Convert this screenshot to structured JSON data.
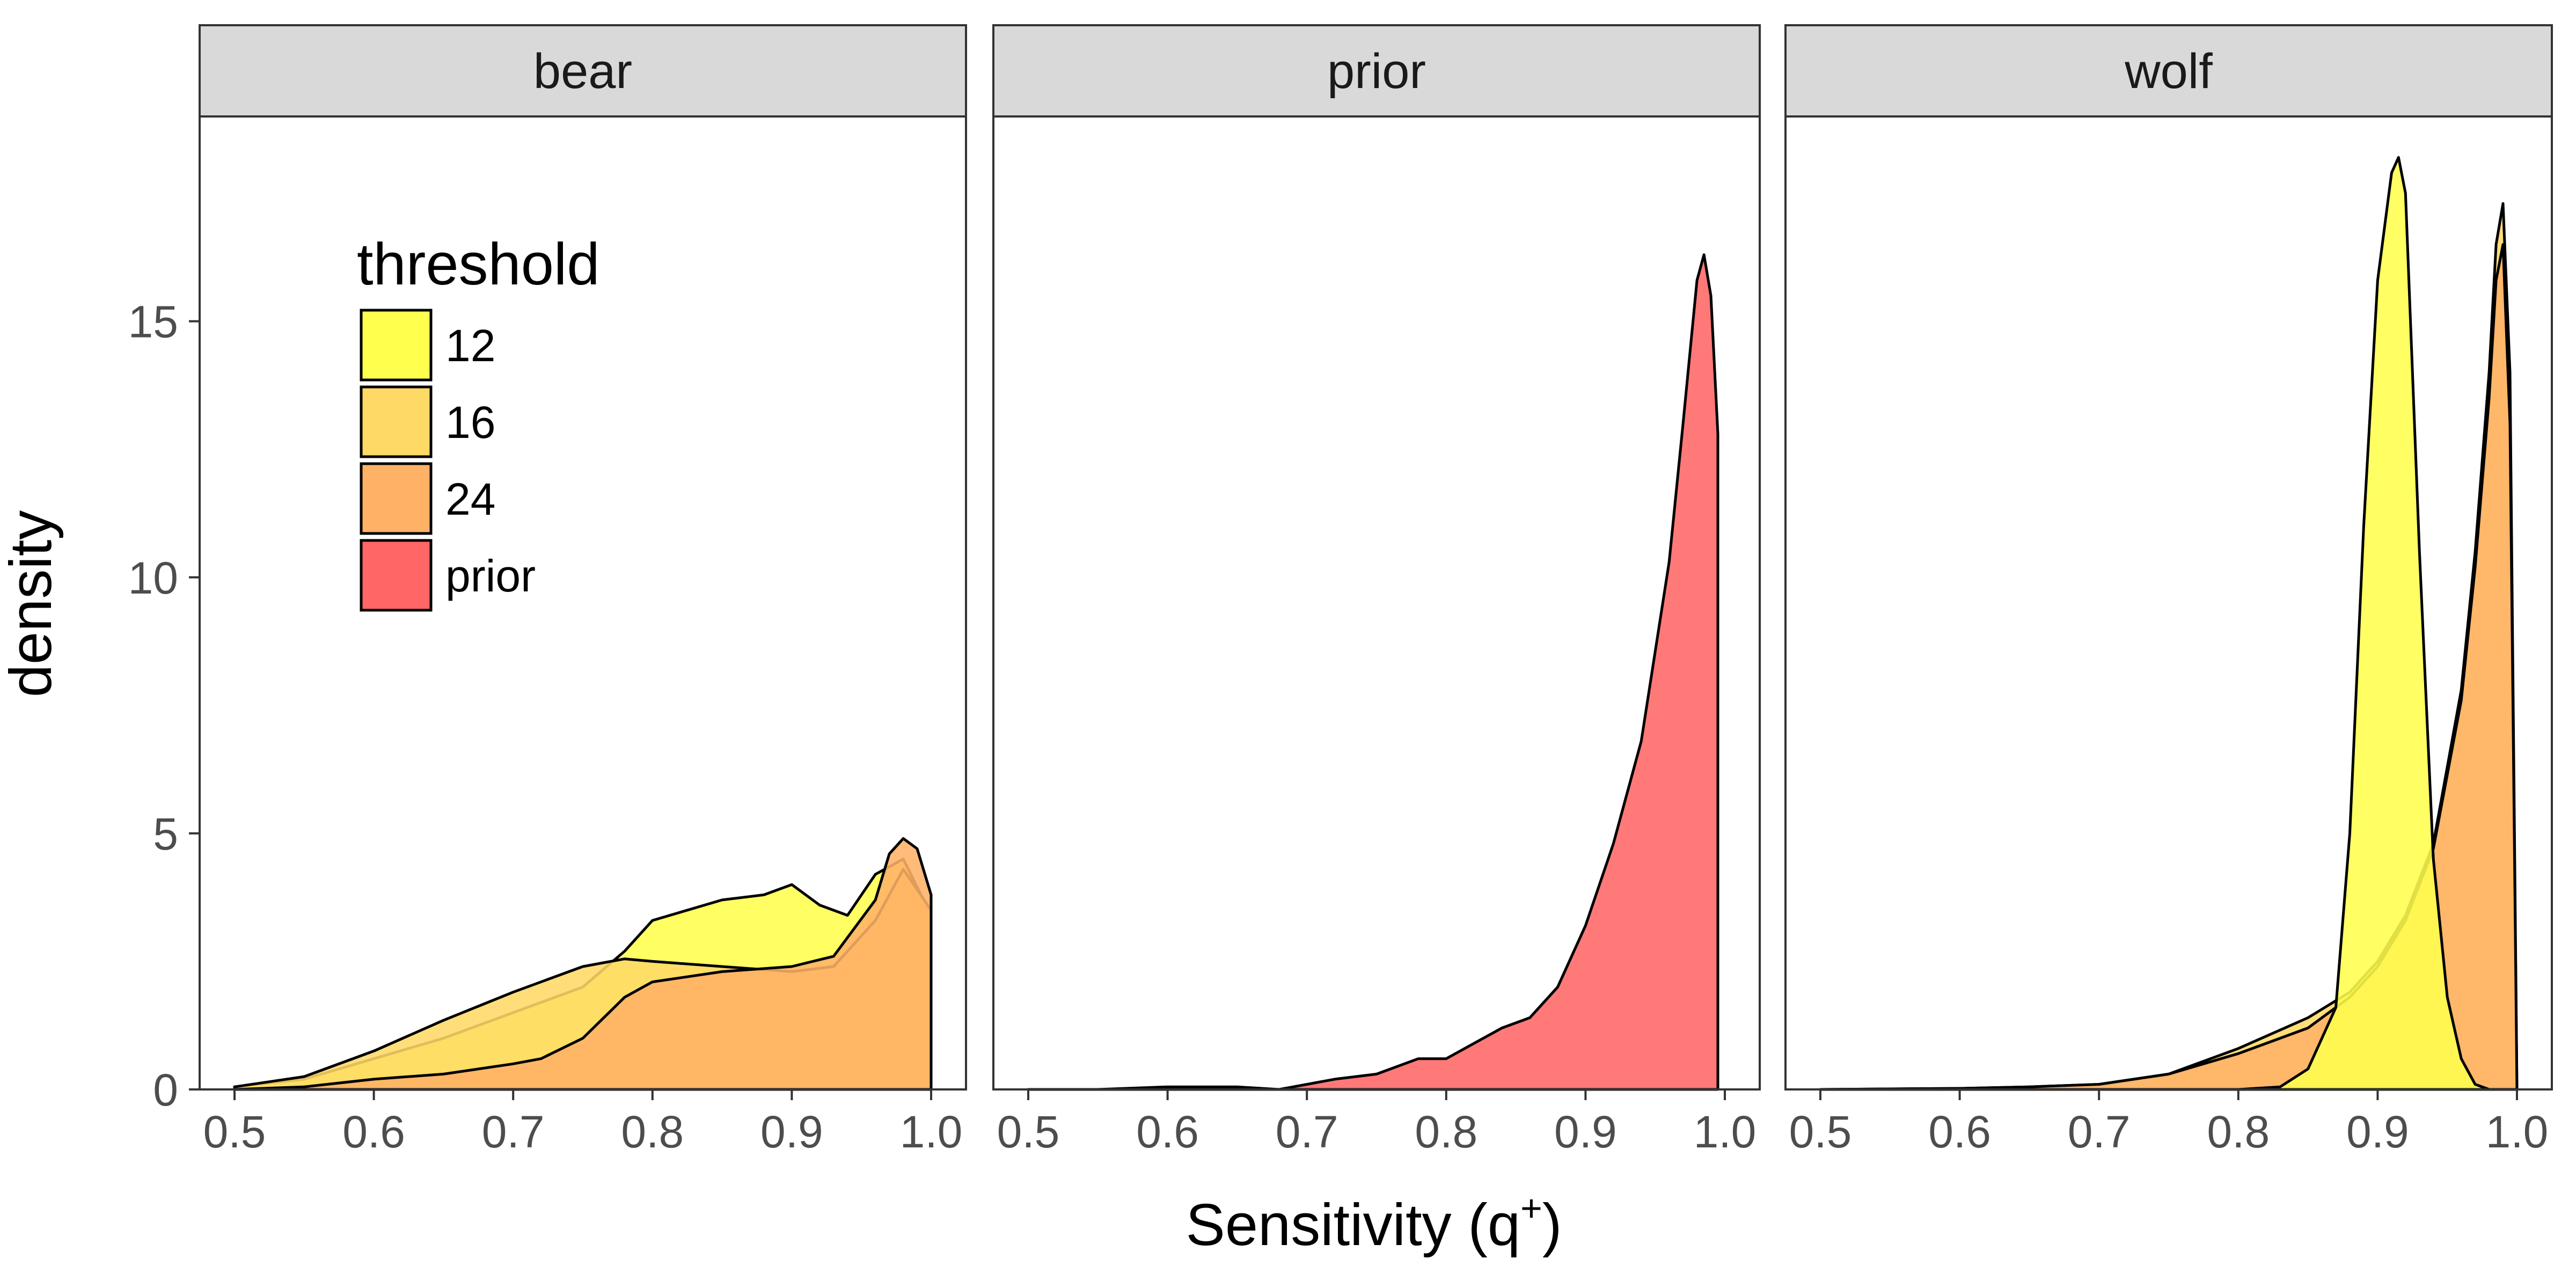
{
  "chart_data": {
    "type": "area",
    "xlabel": "Sensitivity (q",
    "xlabel_sup": "+",
    "xlabel_close": ")",
    "ylabel": "density",
    "xlim": [
      0.5,
      1.0
    ],
    "ylim": [
      0,
      19
    ],
    "x_ticks": [
      "0.5",
      "0.6",
      "0.7",
      "0.8",
      "0.9",
      "1.0"
    ],
    "y_ticks": [
      "0",
      "5",
      "10",
      "15"
    ],
    "grid": false,
    "legend": {
      "title": "threshold",
      "placement": "inside-top-left",
      "entries": [
        {
          "label": "12",
          "color": "#FFFF4D"
        },
        {
          "label": "16",
          "color": "#FFD966"
        },
        {
          "label": "24",
          "color": "#FFB266"
        },
        {
          "label": "prior",
          "color": "#FF6666"
        }
      ]
    },
    "panels": [
      {
        "label": "bear",
        "series": [
          {
            "name": "12",
            "x": [
              0.5,
              0.55,
              0.6,
              0.65,
              0.7,
              0.75,
              0.78,
              0.8,
              0.85,
              0.88,
              0.9,
              0.92,
              0.94,
              0.96,
              0.98,
              1.0
            ],
            "y": [
              0.05,
              0.2,
              0.6,
              1.0,
              1.5,
              2.0,
              2.7,
              3.3,
              3.7,
              3.8,
              4.0,
              3.6,
              3.4,
              4.2,
              4.5,
              3.4
            ]
          },
          {
            "name": "16",
            "x": [
              0.5,
              0.55,
              0.6,
              0.65,
              0.7,
              0.75,
              0.78,
              0.8,
              0.85,
              0.9,
              0.93,
              0.96,
              0.98,
              1.0
            ],
            "y": [
              0.05,
              0.25,
              0.75,
              1.35,
              1.9,
              2.4,
              2.55,
              2.5,
              2.4,
              2.3,
              2.4,
              3.3,
              4.3,
              3.5
            ]
          },
          {
            "name": "24",
            "x": [
              0.5,
              0.55,
              0.6,
              0.65,
              0.7,
              0.72,
              0.75,
              0.78,
              0.8,
              0.85,
              0.9,
              0.93,
              0.96,
              0.97,
              0.98,
              0.99,
              1.0
            ],
            "y": [
              0.0,
              0.05,
              0.2,
              0.3,
              0.5,
              0.6,
              1.0,
              1.8,
              2.1,
              2.3,
              2.4,
              2.6,
              3.7,
              4.6,
              4.9,
              4.7,
              3.8
            ]
          }
        ]
      },
      {
        "label": "prior",
        "series": [
          {
            "name": "prior",
            "x": [
              0.5,
              0.55,
              0.6,
              0.65,
              0.68,
              0.7,
              0.72,
              0.75,
              0.78,
              0.8,
              0.82,
              0.84,
              0.86,
              0.88,
              0.9,
              0.92,
              0.94,
              0.96,
              0.97,
              0.98,
              0.985,
              0.99,
              0.995
            ],
            "y": [
              0.0,
              0.0,
              0.05,
              0.05,
              0.0,
              0.1,
              0.2,
              0.3,
              0.6,
              0.6,
              0.9,
              1.2,
              1.4,
              2.0,
              3.2,
              4.8,
              6.8,
              10.3,
              13.0,
              15.8,
              16.3,
              15.5,
              12.8
            ]
          }
        ]
      },
      {
        "label": "wolf",
        "series": [
          {
            "name": "16",
            "x": [
              0.5,
              0.6,
              0.65,
              0.7,
              0.75,
              0.8,
              0.85,
              0.88,
              0.9,
              0.92,
              0.94,
              0.96,
              0.97,
              0.98,
              0.985,
              0.99,
              0.995,
              1.0
            ],
            "y": [
              0.0,
              0.02,
              0.05,
              0.1,
              0.3,
              0.8,
              1.4,
              1.9,
              2.5,
              3.4,
              4.8,
              7.8,
              10.5,
              14.0,
              16.5,
              17.3,
              14.0,
              0.0
            ]
          },
          {
            "name": "24",
            "x": [
              0.5,
              0.6,
              0.65,
              0.7,
              0.75,
              0.8,
              0.85,
              0.88,
              0.9,
              0.92,
              0.94,
              0.96,
              0.97,
              0.98,
              0.985,
              0.99,
              0.995,
              1.0
            ],
            "y": [
              0.0,
              0.02,
              0.05,
              0.1,
              0.3,
              0.7,
              1.2,
              1.8,
              2.4,
              3.3,
              4.7,
              7.6,
              10.2,
              13.5,
              15.8,
              16.5,
              13.0,
              0.0
            ]
          },
          {
            "name": "12",
            "x": [
              0.8,
              0.83,
              0.85,
              0.87,
              0.88,
              0.89,
              0.9,
              0.91,
              0.915,
              0.92,
              0.93,
              0.94,
              0.95,
              0.96,
              0.97,
              0.98
            ],
            "y": [
              0.0,
              0.05,
              0.4,
              1.6,
              5.0,
              11.0,
              15.8,
              17.9,
              18.2,
              17.5,
              10.5,
              4.5,
              1.8,
              0.6,
              0.1,
              0.0
            ]
          }
        ]
      }
    ]
  }
}
